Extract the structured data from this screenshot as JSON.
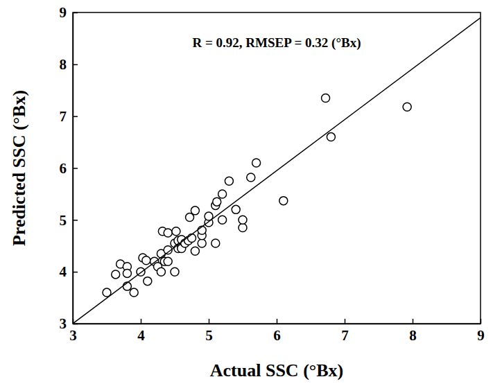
{
  "chart_data": {
    "type": "scatter",
    "annotation": "R = 0.92, RMSEP = 0.32 (°Bx)",
    "x_label": "Actual SSC (°Bx)",
    "y_label": "Predicted SSC (°Bx)",
    "xlim": [
      3,
      9
    ],
    "ylim": [
      3,
      9
    ],
    "xticks": [
      3,
      4,
      5,
      6,
      7,
      8,
      9
    ],
    "yticks": [
      3,
      4,
      5,
      6,
      7,
      8,
      9
    ],
    "grid": false,
    "series": [
      {
        "type": "scatter",
        "marker": "circle",
        "color": "#000000",
        "x": [
          3.5,
          3.63,
          3.7,
          3.8,
          3.8,
          3.8,
          3.9,
          4.0,
          4.03,
          4.08,
          4.1,
          4.2,
          4.25,
          4.3,
          4.3,
          4.32,
          4.35,
          4.4,
          4.4,
          4.4,
          4.5,
          4.5,
          4.52,
          4.55,
          4.55,
          4.6,
          4.6,
          4.6,
          4.65,
          4.7,
          4.72,
          4.75,
          4.8,
          4.8,
          4.9,
          4.9,
          4.9,
          5.0,
          5.0,
          5.1,
          5.1,
          5.12,
          5.2,
          5.2,
          5.3,
          5.4,
          5.5,
          5.5,
          5.62,
          5.7,
          6.1,
          6.72,
          6.8,
          7.92
        ],
        "values": [
          3.6,
          3.95,
          4.15,
          4.1,
          3.97,
          3.72,
          3.6,
          4.0,
          4.27,
          4.22,
          3.82,
          4.2,
          4.1,
          4.0,
          4.35,
          4.78,
          4.2,
          4.75,
          4.2,
          4.42,
          4.0,
          4.55,
          4.78,
          4.6,
          4.45,
          4.5,
          4.45,
          4.62,
          4.55,
          4.6,
          5.05,
          4.65,
          4.4,
          5.18,
          4.55,
          4.7,
          4.8,
          4.95,
          5.07,
          4.55,
          5.28,
          5.35,
          5.0,
          5.5,
          5.75,
          5.2,
          4.85,
          5.0,
          5.82,
          6.1,
          5.37,
          7.35,
          6.6,
          7.18
        ]
      },
      {
        "type": "line",
        "line_style": "solid",
        "color": "#000000",
        "x": [
          3,
          9
        ],
        "values": [
          3.0,
          8.9
        ]
      }
    ]
  }
}
